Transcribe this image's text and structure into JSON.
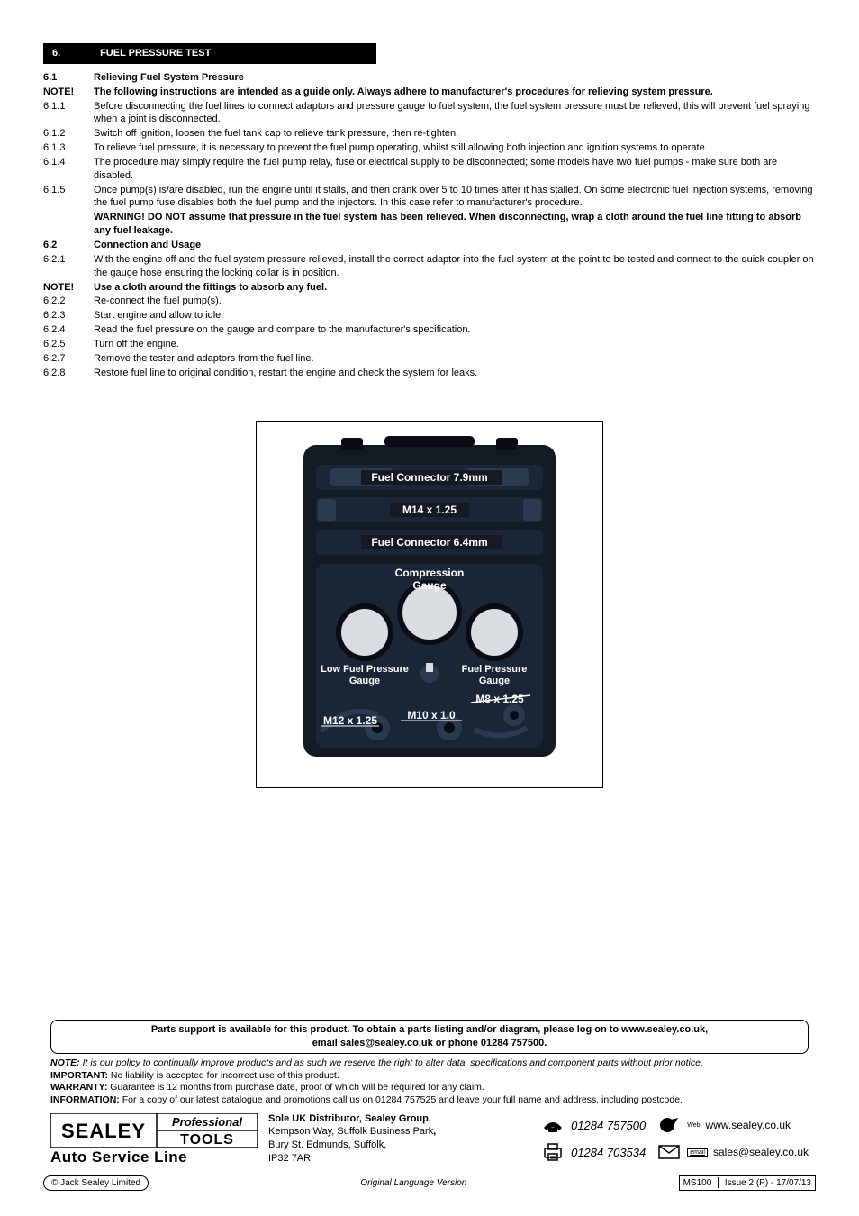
{
  "section_header": {
    "number": "6.",
    "title": "FUEL PRESSURE TEST"
  },
  "lines": [
    {
      "num": "6.1",
      "txt": "Relieving Fuel System Pressure",
      "bold": true
    },
    {
      "num": "NOTE!",
      "txt": "The following instructions are intended as a guide only.  Always adhere to manufacturer's procedures for relieving system pressure.",
      "bold": true
    },
    {
      "num": "6.1.1",
      "txt": "Before disconnecting the fuel lines to connect adaptors and pressure gauge to fuel system, the fuel system pressure must be relieved, this will prevent fuel spraying when a joint is disconnected."
    },
    {
      "num": "6.1.2",
      "txt": "Switch off ignition, loosen the fuel tank cap to relieve tank pressure, then re-tighten."
    },
    {
      "num": "6.1.3",
      "txt": "To relieve fuel pressure, it is necessary to prevent the fuel pump operating, whilst still allowing both injection and ignition systems to operate."
    },
    {
      "num": "6.1.4",
      "txt": "The procedure may simply require the fuel pump relay, fuse or electrical supply to be disconnected; some models have two fuel pumps - make sure both are disabled."
    },
    {
      "num": "6.1.5",
      "txt": "Once pump(s) is/are disabled, run the engine until it stalls, and then crank over 5 to 10 times after it has stalled. On some electronic fuel injection systems, removing the fuel pump fuse disables both the fuel pump and the injectors. In this case refer to manufacturer's procedure."
    },
    {
      "num": " ",
      "txt": "WARNING!  DO NOT assume that pressure in the fuel system has been relieved. When disconnecting, wrap a cloth around the fuel line fitting to absorb any fuel leakage.",
      "bold": true
    },
    {
      "num": "6.2",
      "txt": "Connection and Usage",
      "bold": true
    },
    {
      "num": "6.2.1",
      "txt": "With the engine off and the fuel system pressure relieved, install the correct adaptor into the fuel system at the point to be tested and connect to the quick coupler on the gauge hose ensuring the locking collar is in position."
    },
    {
      "num": "NOTE!",
      "txt": "Use a cloth around the fittings to absorb any fuel.",
      "bold": true
    },
    {
      "num": "6.2.2",
      "txt": "Re-connect the fuel pump(s)."
    },
    {
      "num": "6.2.3",
      "txt": "Start engine and allow to idle."
    },
    {
      "num": "6.2.4",
      "txt": "Read the fuel pressure on the gauge and compare to the manufacturer's specification."
    },
    {
      "num": "6.2.5",
      "txt": "Turn off the engine."
    },
    {
      "num": "6.2.7",
      "txt": "Remove the tester and adaptors from the fuel line."
    },
    {
      "num": "6.2.8",
      "txt": "Restore fuel line to original condition, restart the engine and check the system for leaks."
    }
  ],
  "figure": {
    "case_color": "#131a24",
    "panel_color": "#1a2636",
    "gauge_face": "#d8dde2",
    "text_color": "#ffffff",
    "labels": {
      "fc79": "Fuel Connector 7.9mm",
      "m14": "M14 x 1.25",
      "fc64": "Fuel Connector 6.4mm",
      "comp1": "Compression",
      "comp2": "Gauge",
      "low1": "Low Fuel Pressure",
      "low2": "Gauge",
      "fp1": "Fuel Pressure",
      "fp2": "Gauge",
      "m8": "M8 x 1.25",
      "m12": "M12 x 1.25",
      "m10": "M10 x 1.0"
    }
  },
  "parts": {
    "l1": "Parts support is available for this product. To obtain a parts listing and/or diagram, please log on to www.sealey.co.uk,",
    "l2": "email sales@sealey.co.uk or phone 01284 757500."
  },
  "notes": {
    "note_lbl": "NOTE:",
    "note_txt": " It is our policy to continually improve products and as such we reserve the right to alter data, specifications and component parts without prior notice.",
    "imp_lbl": "IMPORTANT:",
    "imp_txt": " No liability is accepted for incorrect use of this product.",
    "war_lbl": "WARRANTY:",
    "war_txt": " Guarantee is 12 months from purchase date, proof of which will be required for any claim.",
    "info_lbl": "INFORMATION:",
    "info_txt": " For a copy of our latest catalogue and promotions call us on 01284 757525 and leave your full name and address, including postcode."
  },
  "footer": {
    "addr1": "Sole UK Distributor, Sealey Group,",
    "addr2": "Kempson Way, Suffolk Business Park",
    "addr2_suffix": ",",
    "addr3": "Bury St. Edmunds, Suffolk,",
    "addr4": "IP32 7AR",
    "phone": "01284 757500",
    "fax": "01284 703534",
    "web": "www.sealey.co.uk",
    "email": "sales@sealey.co.uk",
    "logo_top": "SEALEY",
    "logo_prof": "Professional",
    "logo_tools": "TOOLS",
    "logo_auto": "Auto Service Line"
  },
  "bottom": {
    "copyright": "© Jack Sealey Limited",
    "centre": "Original Language Version",
    "code": "MS100",
    "issue": "Issue 2 (P) - 17/07/13"
  }
}
